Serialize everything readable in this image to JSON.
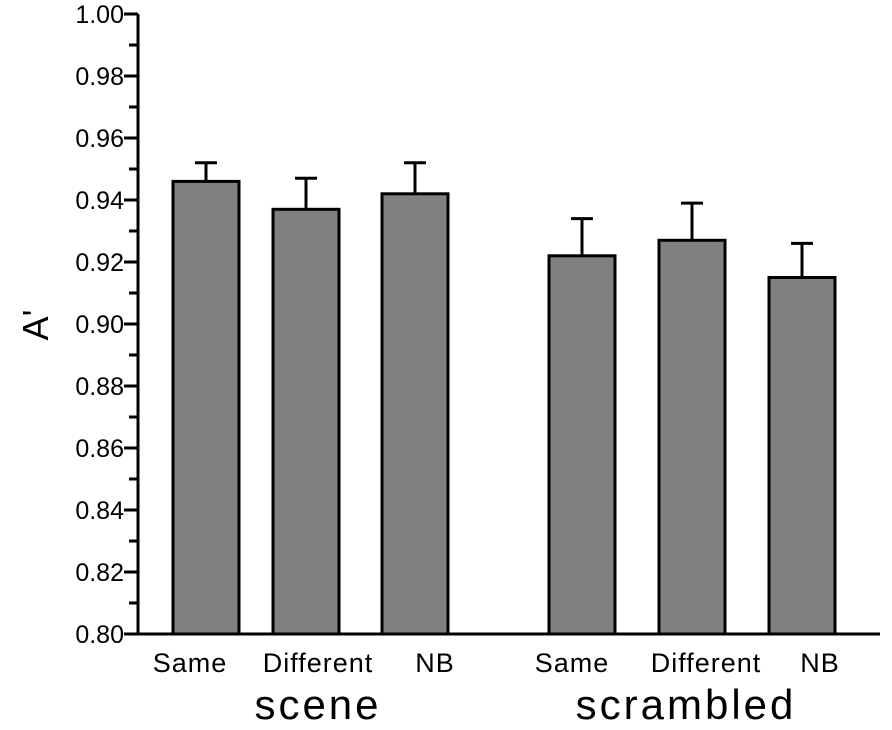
{
  "chart_data": {
    "type": "bar",
    "ylabel": "A'",
    "ylim": [
      0.8,
      1.0
    ],
    "yticks": [
      "0.80",
      "0.82",
      "0.84",
      "0.86",
      "0.88",
      "0.90",
      "0.92",
      "0.94",
      "0.96",
      "0.98",
      "1.00"
    ],
    "groups": [
      {
        "label": "scene",
        "categories": [
          "Same",
          "Different",
          "NB"
        ],
        "values": [
          0.946,
          0.937,
          0.942
        ],
        "errors": [
          0.006,
          0.01,
          0.01
        ]
      },
      {
        "label": "scrambled",
        "categories": [
          "Same",
          "Different",
          "NB"
        ],
        "values": [
          0.922,
          0.927,
          0.915
        ],
        "errors": [
          0.012,
          0.012,
          0.011
        ]
      }
    ],
    "bar_color": "#808080",
    "grid": false,
    "legend": "none"
  }
}
